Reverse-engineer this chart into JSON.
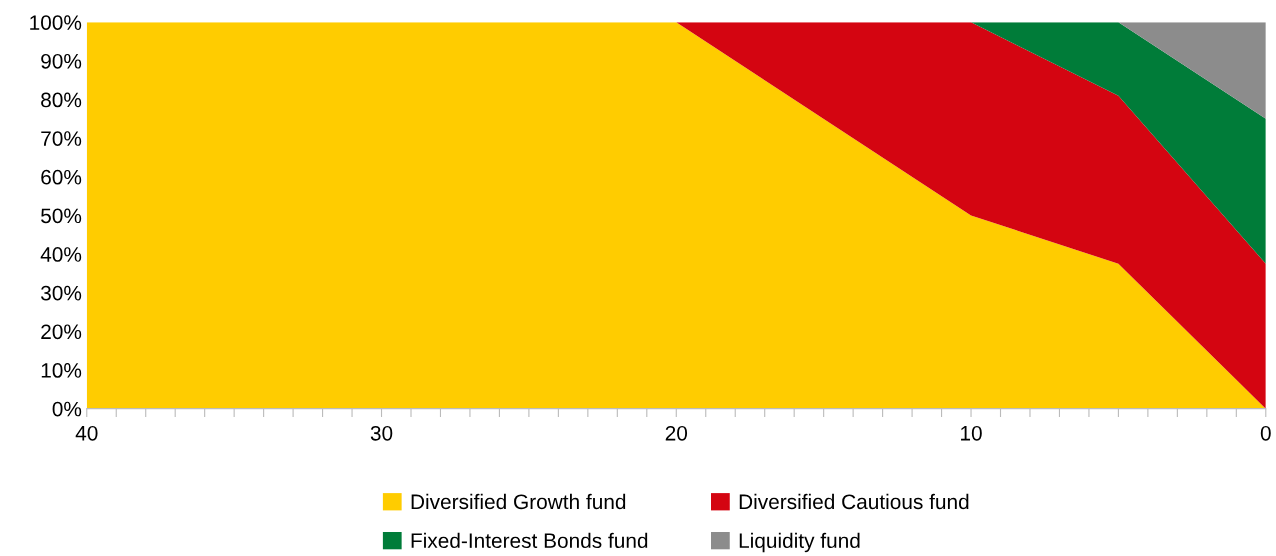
{
  "chart_data": {
    "type": "area",
    "stacked": true,
    "x": [
      40,
      20,
      10,
      5,
      0
    ],
    "series": [
      {
        "name": "Diversified Growth fund",
        "color": "#ffcc00",
        "values": [
          100,
          100,
          50,
          37.5,
          0
        ]
      },
      {
        "name": "Diversified Cautious fund",
        "color": "#d40511",
        "values": [
          null,
          0,
          50,
          43.5,
          37.5
        ]
      },
      {
        "name": "Fixed-Interest Bonds fund",
        "color": "#007c39",
        "values": [
          null,
          null,
          0,
          19,
          37.5
        ]
      },
      {
        "name": "Liquidity fund",
        "color": "#8c8c8c",
        "values": [
          null,
          null,
          null,
          0,
          25
        ]
      }
    ],
    "xlim": [
      40,
      0
    ],
    "xticks": [
      40,
      {
        "value": 39,
        "label": null
      },
      {
        "value": 38,
        "label": null
      },
      {
        "value": 37,
        "label": null
      },
      {
        "value": 36,
        "label": null
      },
      {
        "value": 35,
        "label": null
      },
      {
        "value": 34,
        "label": null
      },
      {
        "value": 33,
        "label": null
      },
      {
        "value": 32,
        "label": null
      },
      {
        "value": 31,
        "label": null
      },
      30,
      {
        "value": 29,
        "label": null
      },
      {
        "value": 28,
        "label": null
      },
      {
        "value": 27,
        "label": null
      },
      {
        "value": 26,
        "label": null
      },
      {
        "value": 25,
        "label": null
      },
      {
        "value": 24,
        "label": null
      },
      {
        "value": 23,
        "label": null
      },
      {
        "value": 22,
        "label": null
      },
      {
        "value": 21,
        "label": null
      },
      20,
      {
        "value": 19,
        "label": null
      },
      {
        "value": 18,
        "label": null
      },
      {
        "value": 17,
        "label": null
      },
      {
        "value": 16,
        "label": null
      },
      {
        "value": 15,
        "label": null
      },
      {
        "value": 14,
        "label": null
      },
      {
        "value": 13,
        "label": null
      },
      {
        "value": 12,
        "label": null
      },
      {
        "value": 11,
        "label": null
      },
      10,
      {
        "value": 9,
        "label": null
      },
      {
        "value": 8,
        "label": null
      },
      {
        "value": 7,
        "label": null
      },
      {
        "value": 6,
        "label": null
      },
      {
        "value": 5,
        "label": null
      },
      {
        "value": 4,
        "label": null
      },
      {
        "value": 3,
        "label": null
      },
      {
        "value": 2,
        "label": null
      },
      {
        "value": 1,
        "label": null
      },
      0
    ],
    "ylim": [
      0,
      100
    ],
    "yticks": [
      {
        "value": 0,
        "label": "0%"
      },
      {
        "value": 10,
        "label": "10%"
      },
      {
        "value": 20,
        "label": "20%"
      },
      {
        "value": 30,
        "label": "30%"
      },
      {
        "value": 40,
        "label": "40%"
      },
      {
        "value": 50,
        "label": "50%"
      },
      {
        "value": 60,
        "label": "60%"
      },
      {
        "value": 70,
        "label": "70%"
      },
      {
        "value": 80,
        "label": "80%"
      },
      {
        "value": 90,
        "label": "90%"
      },
      {
        "value": 100,
        "label": "100%"
      }
    ],
    "grid": false,
    "legend": "bottom"
  }
}
